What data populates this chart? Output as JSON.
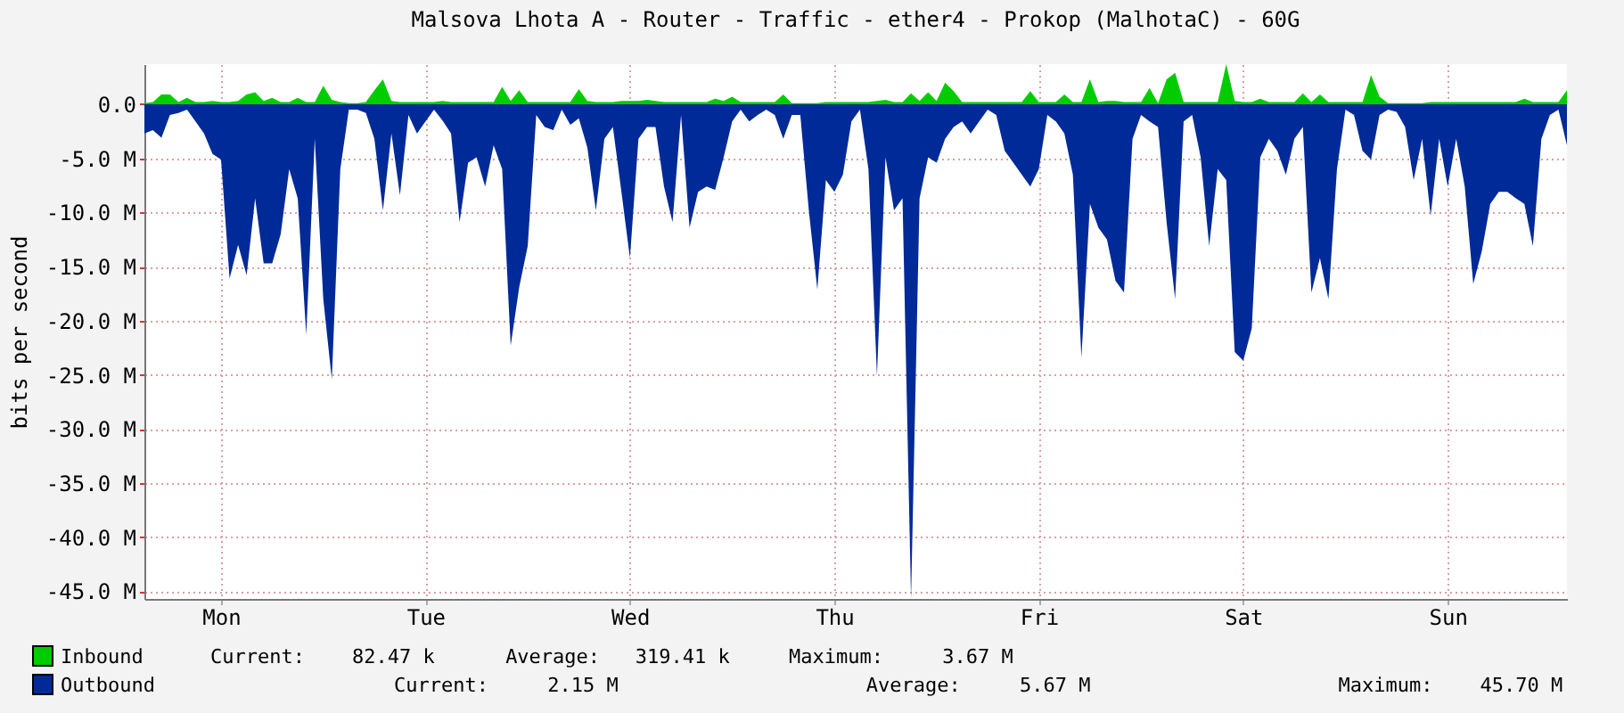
{
  "chart_data": {
    "type": "area",
    "title": "Malsova Lhota A - Router - Traffic - ether4 - Prokop (MalhotaC) - 60G",
    "ylabel": "bits per second",
    "categories": [
      null,
      null,
      null,
      null,
      null,
      null,
      null,
      null,
      null,
      "Mon",
      null,
      null,
      null,
      null,
      null,
      null,
      null,
      null,
      null,
      null,
      null,
      null,
      null,
      null,
      null,
      null,
      null,
      null,
      null,
      null,
      null,
      null,
      null,
      "Tue",
      null,
      null,
      null,
      null,
      null,
      null,
      null,
      null,
      null,
      null,
      null,
      null,
      null,
      null,
      null,
      null,
      null,
      null,
      null,
      null,
      null,
      null,
      null,
      "Wed",
      null,
      null,
      null,
      null,
      null,
      null,
      null,
      null,
      null,
      null,
      null,
      null,
      null,
      null,
      null,
      null,
      null,
      null,
      null,
      null,
      null,
      null,
      null,
      "Thu",
      null,
      null,
      null,
      null,
      null,
      null,
      null,
      null,
      null,
      null,
      null,
      null,
      null,
      null,
      null,
      null,
      null,
      null,
      null,
      null,
      null,
      null,
      null,
      "Fri",
      null,
      null,
      null,
      null,
      null,
      null,
      null,
      null,
      null,
      null,
      null,
      null,
      null,
      null,
      null,
      null,
      null,
      null,
      null,
      null,
      null,
      null,
      null,
      "Sat",
      null,
      null,
      null,
      null,
      null,
      null,
      null,
      null,
      null,
      null,
      null,
      null,
      null,
      null,
      null,
      null,
      null,
      null,
      null,
      null,
      null,
      null,
      null,
      "Sun",
      null,
      null,
      null,
      null,
      null,
      null,
      null,
      null,
      null,
      null,
      null,
      null,
      null,
      null
    ],
    "ylim": [
      -45.7,
      3.7
    ],
    "yticks": [
      {
        "value": 0,
        "label": "0.0"
      },
      {
        "value": -5,
        "label": "-5.0 M"
      },
      {
        "value": -10,
        "label": "-10.0 M"
      },
      {
        "value": -15,
        "label": "-15.0 M"
      },
      {
        "value": -20,
        "label": "-20.0 M"
      },
      {
        "value": -25,
        "label": "-25.0 M"
      },
      {
        "value": -30,
        "label": "-30.0 M"
      },
      {
        "value": -35,
        "label": "-35.0 M"
      },
      {
        "value": -40,
        "label": "-40.0 M"
      },
      {
        "value": -45,
        "label": "-45.0 M"
      }
    ],
    "grid": true,
    "legend": "bottom left",
    "annotations": [
      "Current:    82.47 k      Average:   319.41 k     Maximum:     3.67 M",
      "Current:     2.15 M                     Average:     5.67 M                     Maximum:    45.70 M"
    ],
    "series": [
      {
        "name": "Inbound",
        "color": "#00cc00",
        "values": [
          0.1,
          0.2,
          0.9,
          0.9,
          0.2,
          0.6,
          0.2,
          0.2,
          0.3,
          0.2,
          0.2,
          0.3,
          0.9,
          1.1,
          0.3,
          0.6,
          0.2,
          0.2,
          0.6,
          0.2,
          0.2,
          1.7,
          0.4,
          0.2,
          0.1,
          0.1,
          0.2,
          1.3,
          2.3,
          0.3,
          0.2,
          0.2,
          0.2,
          0.2,
          0.2,
          0.3,
          0.2,
          0.2,
          0.2,
          0.2,
          0.2,
          0.2,
          1.6,
          0.3,
          1.3,
          0.2,
          0.2,
          0.2,
          0.2,
          0.2,
          0.2,
          1.4,
          0.3,
          0.2,
          0.2,
          0.2,
          0.3,
          0.3,
          0.3,
          0.4,
          0.3,
          0.2,
          0.2,
          0.2,
          0.2,
          0.2,
          0.2,
          0.5,
          0.3,
          0.7,
          0.2,
          0.2,
          0.2,
          0.2,
          0.2,
          0.9,
          0.1,
          0.1,
          0.1,
          0.1,
          0.2,
          0.2,
          0.2,
          0.2,
          0.2,
          0.2,
          0.3,
          0.4,
          0.2,
          0.2,
          1.0,
          0.3,
          1.1,
          0.3,
          2.0,
          1.2,
          0.2,
          0.2,
          0.2,
          0.2,
          0.2,
          0.2,
          0.2,
          0.2,
          1.2,
          0.2,
          0.2,
          0.2,
          0.9,
          0.2,
          0.2,
          2.3,
          0.2,
          0.3,
          0.3,
          0.2,
          0.2,
          0.2,
          1.5,
          0.1,
          2.3,
          2.9,
          0.2,
          0.2,
          0.2,
          0.2,
          0.2,
          3.7,
          0.3,
          0.2,
          0.2,
          0.5,
          0.2,
          0.2,
          0.2,
          0.2,
          1.0,
          0.2,
          0.9,
          0.2,
          0.2,
          0.2,
          0.2,
          0.2,
          2.7,
          0.7,
          0.1,
          0.1,
          0.1,
          0.1,
          0.1,
          0.2,
          0.2,
          0.2,
          0.2,
          0.2,
          0.2,
          0.2,
          0.2,
          0.2,
          0.2,
          0.2,
          0.5,
          0.2,
          0.2,
          0.2,
          0.2,
          1.3
        ]
      },
      {
        "name": "Outbound",
        "color": "#002a97",
        "values": [
          -2.7,
          -2.4,
          -3.1,
          -1.0,
          -0.8,
          -0.5,
          -1.6,
          -2.7,
          -4.6,
          -5.1,
          -16.1,
          -13.0,
          -15.8,
          -8.7,
          -14.7,
          -14.7,
          -12.0,
          -6.0,
          -8.7,
          -21.3,
          -3.2,
          -18.0,
          -25.4,
          -6.0,
          -0.5,
          -0.5,
          -0.8,
          -3.2,
          -9.8,
          -2.7,
          -8.4,
          -1.0,
          -2.7,
          -1.6,
          -0.5,
          -1.5,
          -2.7,
          -10.9,
          -5.4,
          -4.9,
          -7.6,
          -3.8,
          -6.0,
          -22.3,
          -16.9,
          -13.1,
          -1.0,
          -2.1,
          -2.4,
          -0.5,
          -1.9,
          -1.3,
          -4.0,
          -9.8,
          -3.2,
          -2.1,
          -8.1,
          -14.2,
          -3.2,
          -2.1,
          -2.1,
          -7.6,
          -10.9,
          -1.0,
          -11.4,
          -8.1,
          -7.6,
          -7.9,
          -4.9,
          -1.6,
          -0.5,
          -1.6,
          -1.0,
          -0.5,
          -1.0,
          -3.2,
          -1.0,
          -1.0,
          -9.8,
          -17.1,
          -7.0,
          -8.1,
          -6.5,
          -1.6,
          -0.5,
          -6.0,
          -25.1,
          -4.9,
          -9.8,
          -8.7,
          -45.7,
          -8.7,
          -4.9,
          -5.4,
          -3.2,
          -2.1,
          -1.6,
          -2.7,
          -1.6,
          -0.5,
          -1.0,
          -4.3,
          -5.4,
          -6.5,
          -7.6,
          -6.0,
          -1.0,
          -1.6,
          -2.7,
          -6.5,
          -23.4,
          -9.2,
          -11.4,
          -12.5,
          -16.3,
          -17.4,
          -3.2,
          -1.0,
          -1.6,
          -2.1,
          -10.9,
          -18.0,
          -1.6,
          -1.0,
          -4.9,
          -13.1,
          -6.0,
          -7.0,
          -22.9,
          -23.7,
          -20.7,
          -4.9,
          -3.2,
          -4.3,
          -6.5,
          -3.2,
          -2.1,
          -17.4,
          -14.2,
          -18.0,
          -6.0,
          -0.5,
          -1.0,
          -4.3,
          -5.1,
          -1.0,
          -0.5,
          -0.7,
          -2.1,
          -7.0,
          -3.2,
          -10.3,
          -3.2,
          -7.6,
          -3.2,
          -7.6,
          -16.6,
          -13.6,
          -9.2,
          -8.1,
          -8.1,
          -8.7,
          -9.2,
          -13.1,
          -3.2,
          -1.0,
          -0.5,
          -3.8
        ]
      }
    ]
  }
}
